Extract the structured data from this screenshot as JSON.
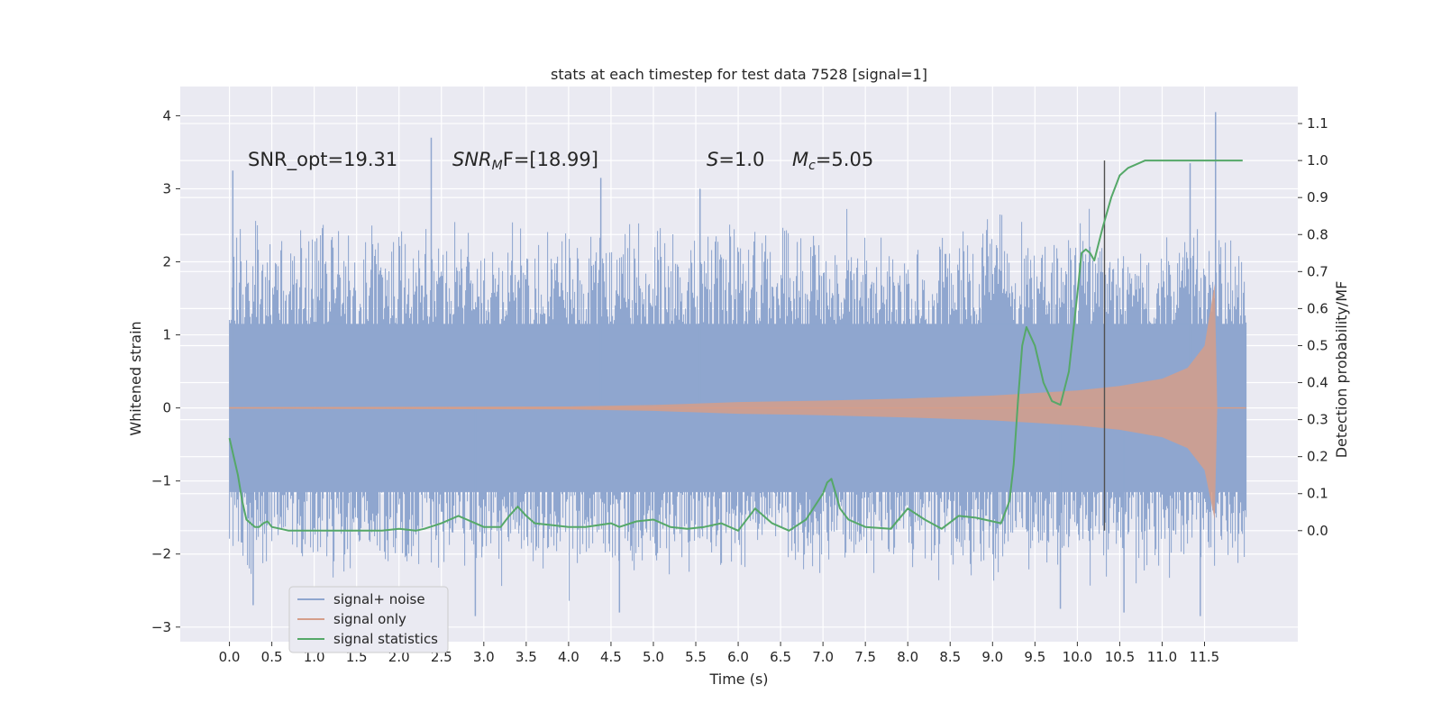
{
  "chart_data": {
    "type": "line",
    "title": "stats at each timestep for test data 7528 [signal=1]",
    "xlabel": "Time (s)",
    "ylabel": "Whitened strain",
    "ylabel_right": "Detection probability/MF",
    "xlim": [
      -0.58,
      12.6
    ],
    "ylim": [
      -3.2,
      4.4
    ],
    "ylim_right": [
      -0.3,
      1.2
    ],
    "grid": true,
    "legend_placement": "lower-left",
    "x_ticks": [
      "0.0",
      "0.5",
      "1.0",
      "1.5",
      "2.0",
      "2.5",
      "3.0",
      "3.5",
      "4.0",
      "4.5",
      "5.0",
      "5.5",
      "6.0",
      "6.5",
      "7.0",
      "7.5",
      "8.0",
      "8.5",
      "9.0",
      "9.5",
      "10.0",
      "10.5",
      "11.0",
      "11.5"
    ],
    "y_ticks": [
      "−3",
      "−2",
      "−1",
      "0",
      "1",
      "2",
      "3",
      "4"
    ],
    "y_ticks_right": [
      "0.0",
      "0.1",
      "0.2",
      "0.3",
      "0.4",
      "0.5",
      "0.6",
      "0.7",
      "0.8",
      "0.9",
      "1.0",
      "1.1"
    ],
    "annotations": {
      "snr_opt": "SNR_opt=19.31",
      "snr_mf_name": "SNR",
      "snr_mf_sub": "M",
      "snr_mf_rest": "F=[18.99]",
      "s_name": "S",
      "s_rest": "=1.0",
      "mc_name": "M",
      "mc_sub": "c",
      "mc_rest": "=5.05"
    },
    "vertical_line_x": 10.32,
    "colors": {
      "background": "#eaeaf2",
      "grid": "#ffffff",
      "noise": "#8fa6cf",
      "signal": "#d59e8a",
      "stats": "#55a868",
      "vline": "#505050"
    },
    "series": [
      {
        "name": "signal+ noise",
        "role": "noise",
        "t_range": [
          0.0,
          11.99
        ],
        "envelope_typical": [
          -2.0,
          2.2
        ],
        "peaks": [
          {
            "x": 0.04,
            "y": 3.25
          },
          {
            "x": 2.38,
            "y": 3.7
          },
          {
            "x": 4.38,
            "y": 3.15
          },
          {
            "x": 5.55,
            "y": 3.0
          },
          {
            "x": 11.33,
            "y": 3.35
          },
          {
            "x": 11.63,
            "y": 4.05
          },
          {
            "x": 0.28,
            "y": -2.7
          },
          {
            "x": 2.9,
            "y": -2.85
          },
          {
            "x": 4.6,
            "y": -2.8
          },
          {
            "x": 9.8,
            "y": -2.75
          },
          {
            "x": 10.55,
            "y": -2.8
          },
          {
            "x": 11.45,
            "y": -2.85
          }
        ]
      },
      {
        "name": "signal only",
        "role": "signal",
        "amplitude": [
          {
            "x": 0.0,
            "y": 0.01
          },
          {
            "x": 4.0,
            "y": 0.02
          },
          {
            "x": 5.0,
            "y": 0.04
          },
          {
            "x": 6.0,
            "y": 0.08
          },
          {
            "x": 7.0,
            "y": 0.1
          },
          {
            "x": 8.0,
            "y": 0.13
          },
          {
            "x": 9.0,
            "y": 0.17
          },
          {
            "x": 10.0,
            "y": 0.24
          },
          {
            "x": 10.5,
            "y": 0.3
          },
          {
            "x": 11.0,
            "y": 0.4
          },
          {
            "x": 11.3,
            "y": 0.55
          },
          {
            "x": 11.5,
            "y": 0.85
          },
          {
            "x": 11.62,
            "y": 1.7
          },
          {
            "x": 11.65,
            "y": 0.0
          }
        ]
      },
      {
        "name": "signal statistics",
        "role": "stats",
        "axis": "right",
        "x": [
          0.0,
          0.05,
          0.1,
          0.15,
          0.2,
          0.25,
          0.3,
          0.35,
          0.4,
          0.45,
          0.5,
          0.6,
          0.7,
          0.8,
          1.0,
          1.2,
          1.4,
          1.6,
          1.8,
          2.0,
          2.2,
          2.3,
          2.5,
          2.6,
          2.7,
          2.8,
          2.9,
          3.0,
          3.2,
          3.3,
          3.4,
          3.5,
          3.6,
          3.8,
          4.0,
          4.2,
          4.5,
          4.6,
          4.8,
          5.0,
          5.2,
          5.4,
          5.6,
          5.8,
          6.0,
          6.2,
          6.4,
          6.6,
          6.8,
          7.0,
          7.05,
          7.1,
          7.15,
          7.2,
          7.3,
          7.5,
          7.8,
          8.0,
          8.2,
          8.4,
          8.6,
          8.8,
          9.0,
          9.1,
          9.2,
          9.25,
          9.3,
          9.35,
          9.4,
          9.5,
          9.55,
          9.6,
          9.7,
          9.8,
          9.9,
          10.0,
          10.05,
          10.1,
          10.15,
          10.2,
          10.3,
          10.4,
          10.5,
          10.6,
          10.7,
          10.8,
          11.0,
          11.5,
          11.95
        ],
        "values": [
          0.25,
          0.2,
          0.15,
          0.08,
          0.03,
          0.02,
          0.01,
          0.01,
          0.02,
          0.025,
          0.01,
          0.005,
          0.0,
          0.0,
          0.0,
          0.0,
          0.0,
          0.0,
          0.0,
          0.005,
          0.0,
          0.005,
          0.02,
          0.03,
          0.04,
          0.03,
          0.02,
          0.01,
          0.01,
          0.04,
          0.065,
          0.04,
          0.02,
          0.015,
          0.01,
          0.01,
          0.02,
          0.01,
          0.025,
          0.03,
          0.01,
          0.005,
          0.01,
          0.02,
          0.0,
          0.06,
          0.02,
          0.0,
          0.03,
          0.1,
          0.13,
          0.14,
          0.1,
          0.06,
          0.03,
          0.01,
          0.005,
          0.06,
          0.03,
          0.005,
          0.04,
          0.035,
          0.025,
          0.02,
          0.08,
          0.18,
          0.35,
          0.5,
          0.55,
          0.5,
          0.45,
          0.4,
          0.35,
          0.34,
          0.43,
          0.64,
          0.75,
          0.76,
          0.75,
          0.73,
          0.82,
          0.9,
          0.96,
          0.98,
          0.99,
          1.0,
          1.0,
          1.0,
          1.0
        ]
      }
    ]
  }
}
